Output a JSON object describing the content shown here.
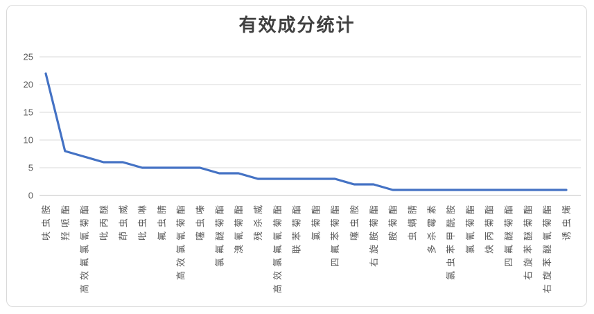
{
  "chart_data": {
    "type": "line",
    "title": "有效成分统计",
    "categories": [
      "呋虫胺",
      "羟哌酯",
      "高效氟氯氰菊酯",
      "吡丙醚",
      "茚虫威",
      "吡虫啉",
      "氟虫腈",
      "高效氯氰菊酯",
      "噻虫嗪",
      "氯氟醚菊酯",
      "溴氰菊酯",
      "残杀威",
      "高效氯氟氰菊酯",
      "联苯菊酯",
      "氯菊酯",
      "四氟苯菊酯",
      "噻虫胺",
      "右旋胺菊酯",
      "胺菊酯",
      "虫螨腈",
      "多杀霉素",
      "氯虫苯甲酰胺",
      "氯氰菊酯",
      "炔丙菊酯",
      "四氟醚菊酯",
      "右旋苯醚菊酯",
      "右旋苯醚氰菊酯",
      "诱虫烯"
    ],
    "values": [
      22,
      8,
      7,
      6,
      6,
      5,
      5,
      5,
      5,
      4,
      4,
      3,
      3,
      3,
      3,
      3,
      2,
      2,
      1,
      1,
      1,
      1,
      1,
      1,
      1,
      1,
      1,
      1
    ],
    "xlabel": "",
    "ylabel": "",
    "ylim": [
      0,
      25
    ],
    "yticks": [
      0,
      5,
      10,
      15,
      20,
      25
    ],
    "grid": true,
    "legend": false,
    "colors": {
      "line": "#4472c4",
      "gridline": "#d9d9d9",
      "axis_line": "#c0c0c0",
      "tick_label": "#595959",
      "title": "#404040",
      "card_border": "#d9d9d9",
      "background": "#ffffff"
    }
  }
}
